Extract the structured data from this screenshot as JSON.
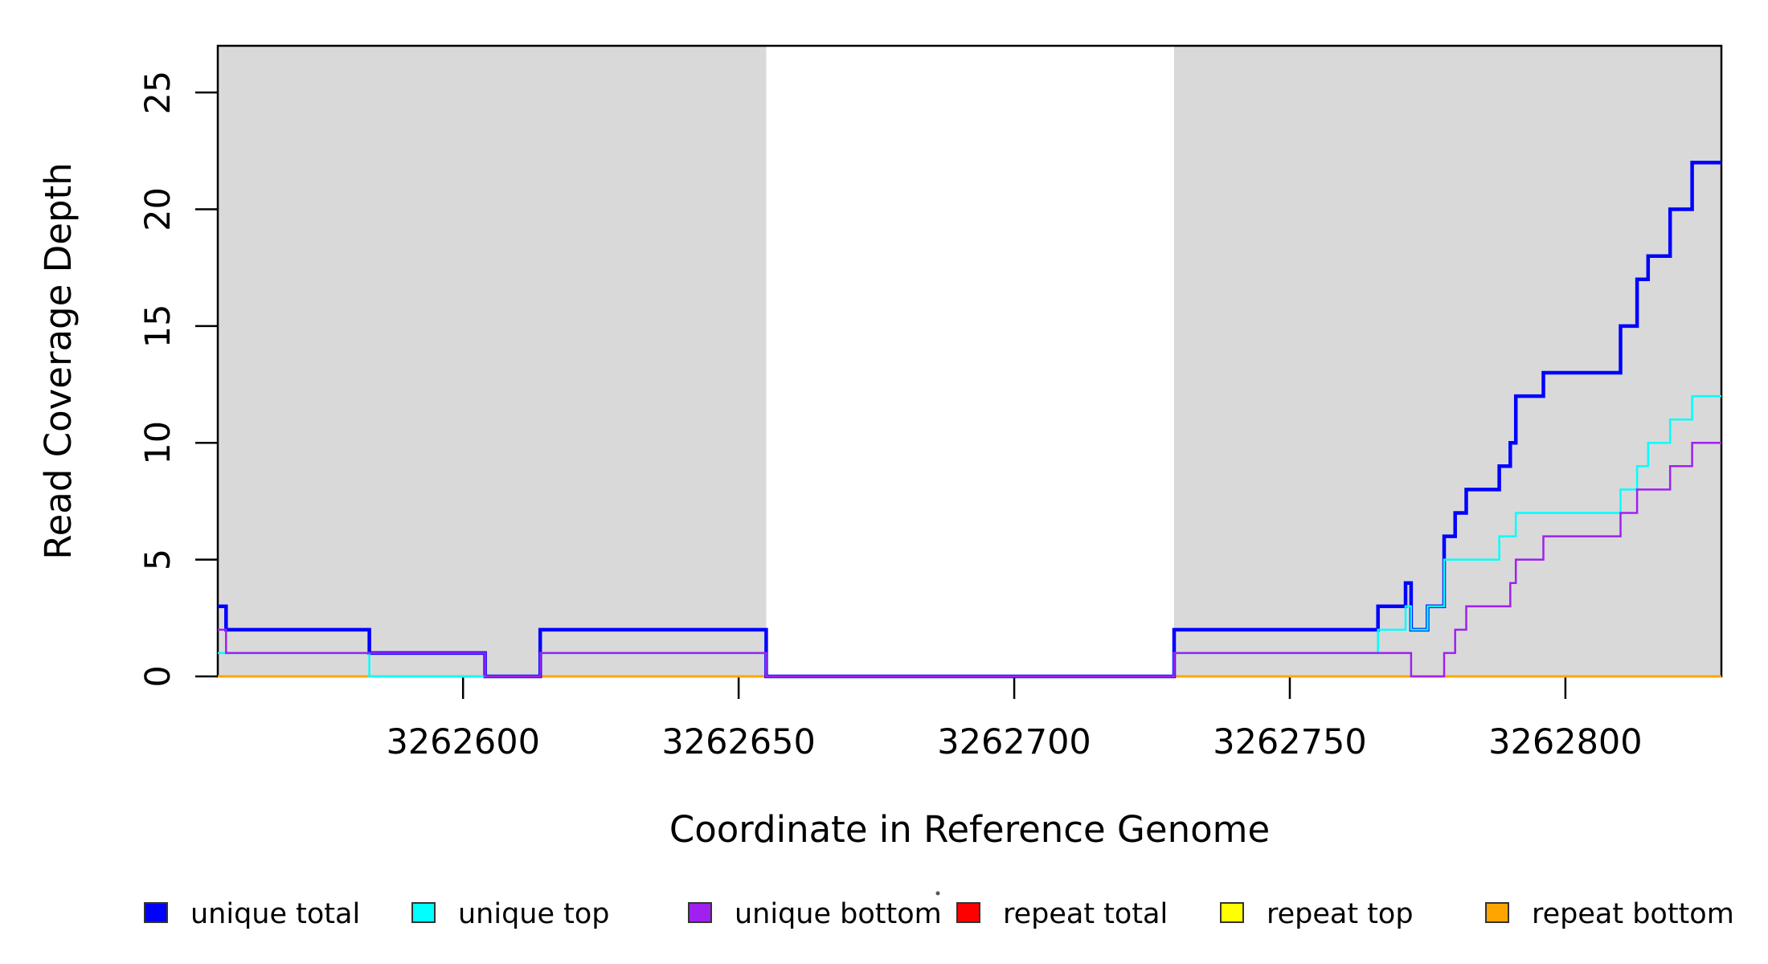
{
  "figure": {
    "background": "#FFFFFF",
    "shaded_region_color": "#D9D9D9",
    "axis_color": "#000000"
  },
  "chart_data": {
    "type": "line",
    "subtype": "step",
    "title": "",
    "xlabel": "Coordinate in Reference Genome",
    "ylabel": "Read Coverage Depth",
    "xlim": [
      3262555.5,
      3262828.3
    ],
    "ylim": [
      0,
      27
    ],
    "x_ticks": [
      3262600,
      3262650,
      3262700,
      3262750,
      3262800
    ],
    "y_ticks": [
      0,
      5,
      10,
      15,
      20,
      25
    ],
    "grid": false,
    "legend_position": "bottom",
    "shaded_regions": [
      [
        3262555.5,
        3262655
      ],
      [
        3262729,
        3262828.3
      ]
    ],
    "series": [
      {
        "name": "unique total",
        "color": "#0000FF",
        "width": 4.5,
        "points": [
          [
            3262556,
            3
          ],
          [
            3262557,
            2
          ],
          [
            3262583,
            1
          ],
          [
            3262604,
            0
          ],
          [
            3262614,
            2
          ],
          [
            3262655,
            0
          ],
          [
            3262729,
            2
          ],
          [
            3262766,
            3
          ],
          [
            3262771,
            4
          ],
          [
            3262772,
            2
          ],
          [
            3262775,
            3
          ],
          [
            3262778,
            6
          ],
          [
            3262780,
            7
          ],
          [
            3262782,
            8
          ],
          [
            3262788,
            9
          ],
          [
            3262790,
            10
          ],
          [
            3262791,
            12
          ],
          [
            3262796,
            13
          ],
          [
            3262810,
            15
          ],
          [
            3262813,
            17
          ],
          [
            3262815,
            18
          ],
          [
            3262819,
            20
          ],
          [
            3262823,
            22
          ],
          [
            3262828,
            22
          ]
        ]
      },
      {
        "name": "unique top",
        "color": "#00FFFF",
        "width": 2.5,
        "points": [
          [
            3262556,
            1
          ],
          [
            3262583,
            0
          ],
          [
            3262614,
            1
          ],
          [
            3262655,
            0
          ],
          [
            3262729,
            1
          ],
          [
            3262766,
            2
          ],
          [
            3262771,
            3
          ],
          [
            3262772,
            2
          ],
          [
            3262775,
            3
          ],
          [
            3262778,
            5
          ],
          [
            3262788,
            6
          ],
          [
            3262791,
            7
          ],
          [
            3262810,
            8
          ],
          [
            3262813,
            9
          ],
          [
            3262815,
            10
          ],
          [
            3262819,
            11
          ],
          [
            3262823,
            12
          ],
          [
            3262828,
            12
          ]
        ]
      },
      {
        "name": "unique bottom",
        "color": "#A020F0",
        "width": 2.5,
        "points": [
          [
            3262556,
            2
          ],
          [
            3262557,
            1
          ],
          [
            3262604,
            0
          ],
          [
            3262614,
            1
          ],
          [
            3262655,
            0
          ],
          [
            3262729,
            1
          ],
          [
            3262772,
            0
          ],
          [
            3262778,
            1
          ],
          [
            3262780,
            2
          ],
          [
            3262782,
            3
          ],
          [
            3262790,
            4
          ],
          [
            3262791,
            5
          ],
          [
            3262796,
            6
          ],
          [
            3262810,
            7
          ],
          [
            3262813,
            8
          ],
          [
            3262819,
            9
          ],
          [
            3262823,
            10
          ],
          [
            3262828,
            10
          ]
        ]
      },
      {
        "name": "repeat total",
        "color": "#FF0000",
        "width": 2,
        "points": [
          [
            3262556,
            0
          ],
          [
            3262828,
            0
          ]
        ]
      },
      {
        "name": "repeat top",
        "color": "#FFFF00",
        "width": 2,
        "points": [
          [
            3262556,
            0
          ],
          [
            3262828,
            0
          ]
        ]
      },
      {
        "name": "repeat bottom",
        "color": "#FFA500",
        "width": 3,
        "points": [
          [
            3262556,
            0
          ],
          [
            3262828,
            0
          ]
        ]
      }
    ],
    "draw_order": [
      "repeat total",
      "repeat top",
      "repeat bottom",
      "unique total",
      "unique top",
      "unique bottom"
    ]
  }
}
